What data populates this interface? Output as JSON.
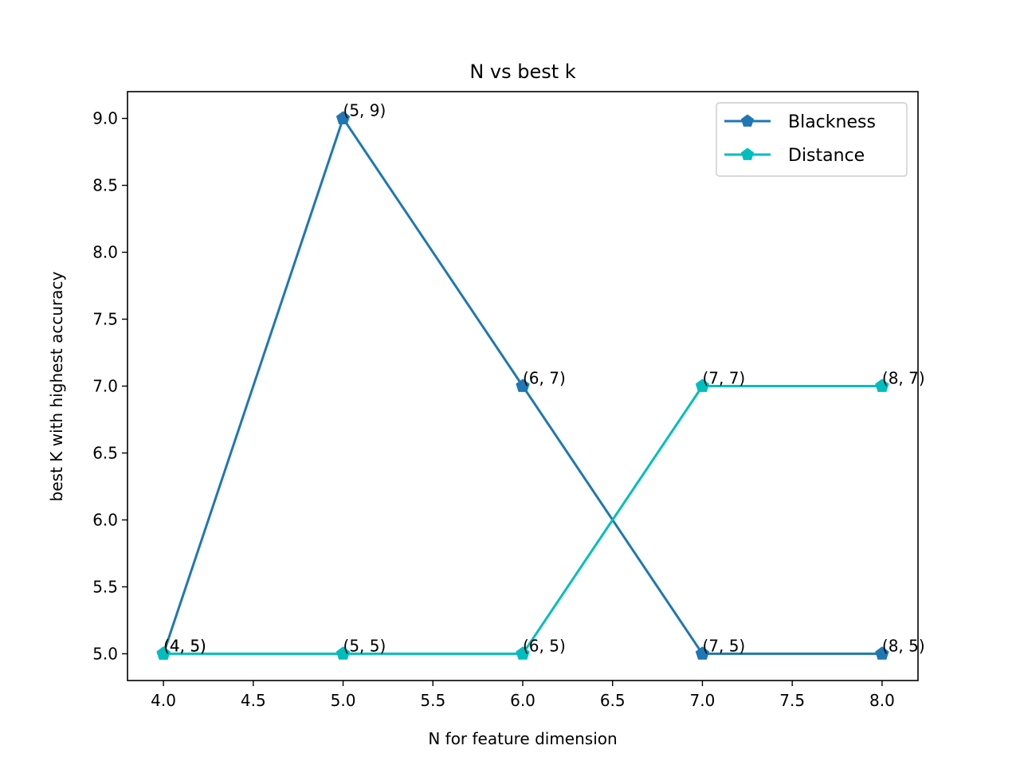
{
  "chart_data": {
    "type": "line",
    "title": "N vs best k",
    "xlabel": "N for feature dimension",
    "ylabel": "best K with highest accuracy",
    "xlim": [
      3.8,
      8.2
    ],
    "ylim": [
      4.8,
      9.2
    ],
    "x_ticks": [
      4.0,
      4.5,
      5.0,
      5.5,
      6.0,
      6.5,
      7.0,
      7.5,
      8.0
    ],
    "x_tick_labels": [
      "4.0",
      "4.5",
      "5.0",
      "5.5",
      "6.0",
      "6.5",
      "7.0",
      "7.5",
      "8.0"
    ],
    "y_ticks": [
      5.0,
      5.5,
      6.0,
      6.5,
      7.0,
      7.5,
      8.0,
      8.5,
      9.0
    ],
    "y_tick_labels": [
      "5.0",
      "5.5",
      "6.0",
      "6.5",
      "7.0",
      "7.5",
      "8.0",
      "8.5",
      "9.0"
    ],
    "grid": false,
    "legend_position": "top-right",
    "marker": "pentagon",
    "series": [
      {
        "name": "Blackness",
        "color": "#1f77b4",
        "x": [
          4,
          5,
          6,
          7,
          8
        ],
        "y": [
          5,
          9,
          7,
          5,
          5
        ],
        "labels": [
          "(4, 5)",
          "(5, 9)",
          "(6, 7)",
          "(7, 5)",
          "(8, 5)"
        ]
      },
      {
        "name": "Distance",
        "color": "#00bebe",
        "x": [
          4,
          5,
          6,
          7,
          8
        ],
        "y": [
          5,
          5,
          5,
          7,
          7
        ],
        "labels": [
          "(4, 5)",
          "(5, 5)",
          "(6, 5)",
          "(7, 7)",
          "(8, 7)"
        ]
      }
    ]
  }
}
